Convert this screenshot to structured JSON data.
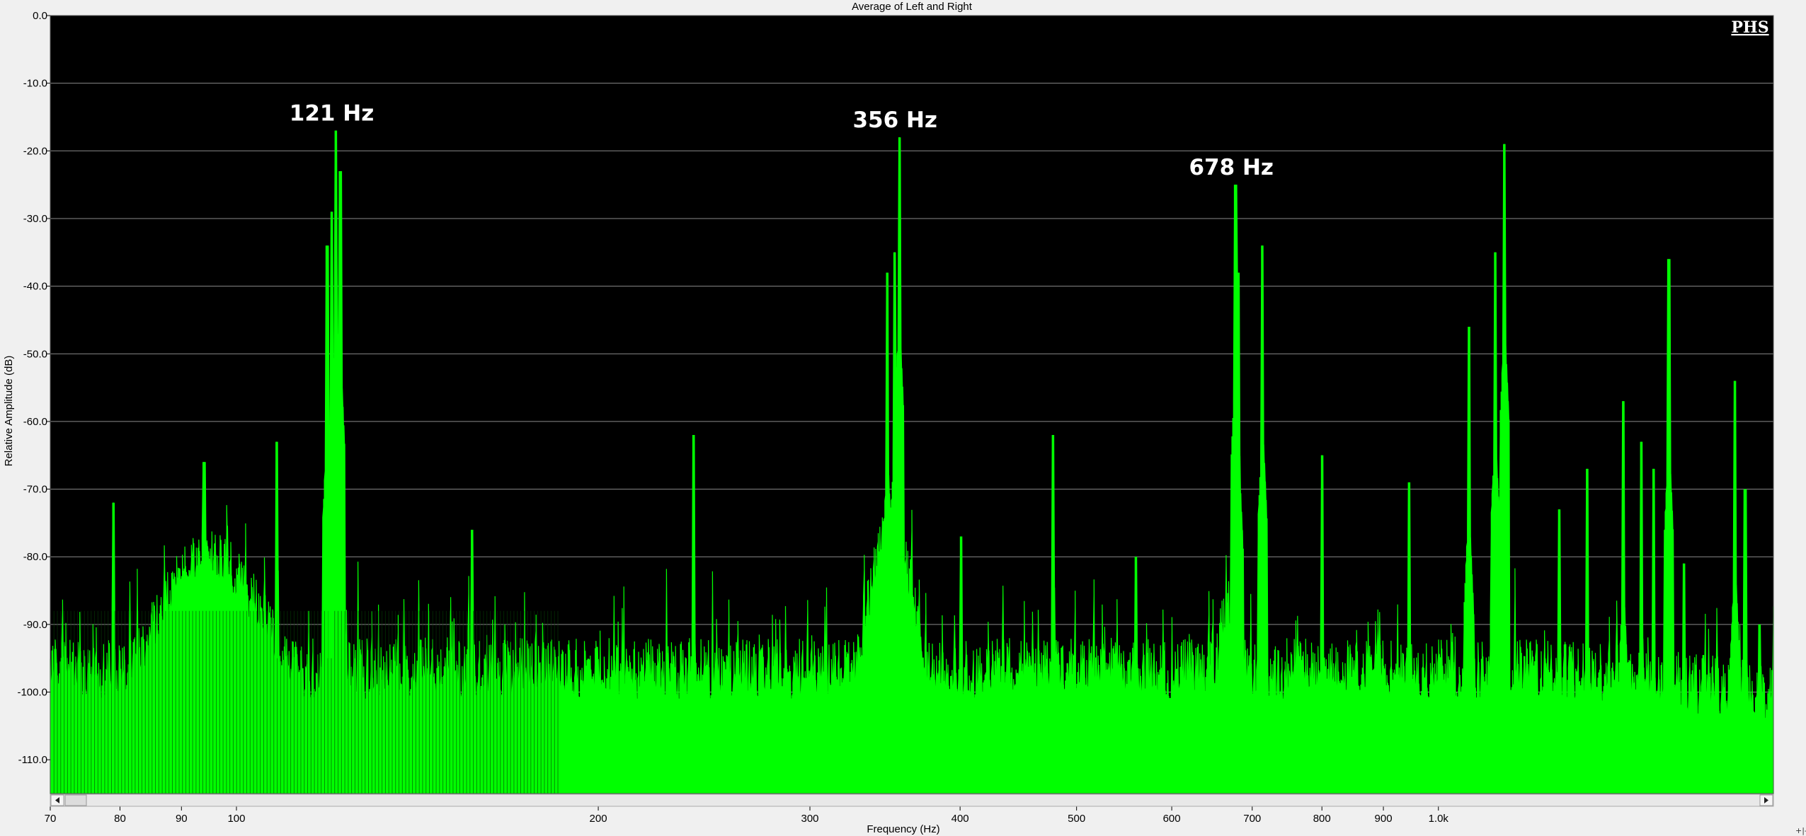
{
  "chart_data": {
    "type": "area",
    "title": "Average of Left and Right",
    "xlabel": "Frequency (Hz)",
    "ylabel": "Relative Amplitude (dB)",
    "x_scale": "log",
    "xlim": [
      70,
      1900
    ],
    "ylim": [
      -115,
      0
    ],
    "grid": true,
    "logo": "PHS",
    "y_ticks": [
      {
        "value": 0,
        "label": "0.0"
      },
      {
        "value": -10,
        "label": "-10.0"
      },
      {
        "value": -20,
        "label": "-20.0"
      },
      {
        "value": -30,
        "label": "-30.0"
      },
      {
        "value": -40,
        "label": "-40.0"
      },
      {
        "value": -50,
        "label": "-50.0"
      },
      {
        "value": -60,
        "label": "-60.0"
      },
      {
        "value": -70,
        "label": "-70.0"
      },
      {
        "value": -80,
        "label": "-80.0"
      },
      {
        "value": -90,
        "label": "-90.0"
      },
      {
        "value": -100,
        "label": "-100.0"
      },
      {
        "value": -110,
        "label": "-110.0"
      }
    ],
    "x_ticks": [
      {
        "value": 70,
        "label": "70"
      },
      {
        "value": 80,
        "label": "80"
      },
      {
        "value": 90,
        "label": "90"
      },
      {
        "value": 100,
        "label": "100"
      },
      {
        "value": 200,
        "label": "200"
      },
      {
        "value": 300,
        "label": "300"
      },
      {
        "value": 400,
        "label": "400"
      },
      {
        "value": 500,
        "label": "500"
      },
      {
        "value": 600,
        "label": "600"
      },
      {
        "value": 700,
        "label": "700"
      },
      {
        "value": 800,
        "label": "800"
      },
      {
        "value": 900,
        "label": "900"
      },
      {
        "value": 1000,
        "label": "1.0k"
      }
    ],
    "annotations": [
      {
        "text": "121 Hz",
        "x": 121,
        "y": -17
      },
      {
        "text": "356 Hz",
        "x": 356,
        "y": -18
      },
      {
        "text": "678 Hz",
        "x": 678,
        "y": -25
      }
    ],
    "series": [
      {
        "color": "#00ff00",
        "floor": -97,
        "peaks": [
          {
            "x": 79,
            "y": -72
          },
          {
            "x": 94,
            "y": -66
          },
          {
            "x": 108,
            "y": -63
          },
          {
            "x": 119,
            "y": -34
          },
          {
            "x": 120,
            "y": -29
          },
          {
            "x": 121,
            "y": -17
          },
          {
            "x": 122,
            "y": -23
          },
          {
            "x": 157,
            "y": -76
          },
          {
            "x": 240,
            "y": -62
          },
          {
            "x": 348,
            "y": -38
          },
          {
            "x": 353,
            "y": -35
          },
          {
            "x": 356,
            "y": -18
          },
          {
            "x": 401,
            "y": -77
          },
          {
            "x": 478,
            "y": -62
          },
          {
            "x": 560,
            "y": -80
          },
          {
            "x": 678,
            "y": -25
          },
          {
            "x": 682,
            "y": -38
          },
          {
            "x": 714,
            "y": -34
          },
          {
            "x": 800,
            "y": -65
          },
          {
            "x": 945,
            "y": -69
          },
          {
            "x": 1060,
            "y": -46
          },
          {
            "x": 1115,
            "y": -35
          },
          {
            "x": 1135,
            "y": -19
          },
          {
            "x": 1260,
            "y": -73
          },
          {
            "x": 1330,
            "y": -67
          },
          {
            "x": 1425,
            "y": -57
          },
          {
            "x": 1475,
            "y": -63
          },
          {
            "x": 1510,
            "y": -67
          },
          {
            "x": 1555,
            "y": -36
          },
          {
            "x": 1600,
            "y": -81
          },
          {
            "x": 1765,
            "y": -54
          },
          {
            "x": 1800,
            "y": -70
          },
          {
            "x": 1850,
            "y": -90
          }
        ],
        "humps": [
          {
            "x": 95,
            "y": -80,
            "width": 0.09
          },
          {
            "x": 350,
            "y": -76,
            "width": 0.035
          },
          {
            "x": 670,
            "y": -86,
            "width": 0.02
          }
        ]
      }
    ]
  }
}
